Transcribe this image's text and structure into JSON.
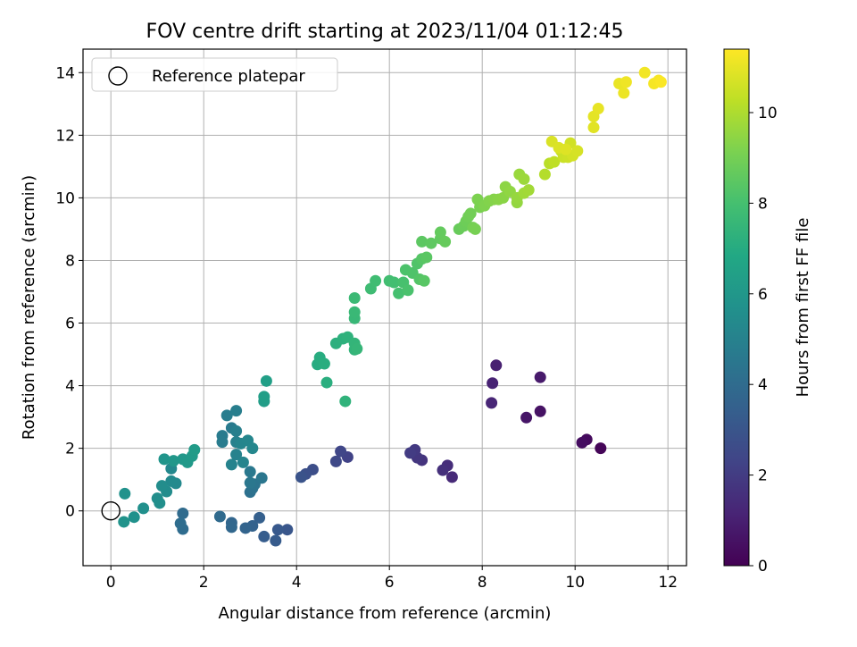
{
  "chart_data": {
    "type": "scatter",
    "title": "FOV centre drift starting at 2023/11/04 01:12:45",
    "xlabel": "Angular distance from reference (arcmin)",
    "ylabel": "Rotation from reference (arcmin)",
    "xlim": [
      -0.6,
      12.4
    ],
    "ylim": [
      -1.75,
      14.75
    ],
    "xticks": [
      0,
      2,
      4,
      6,
      8,
      10,
      12
    ],
    "yticks": [
      0,
      2,
      4,
      6,
      8,
      10,
      12,
      14
    ],
    "grid": true,
    "legend": {
      "placement": "top-left",
      "entries": [
        "Reference platepar"
      ]
    },
    "reference": {
      "x": 0,
      "y": 0
    },
    "colorbar": {
      "label": "Hours from first FF file",
      "colormap": "viridis",
      "min": 0,
      "max": 11.4,
      "ticks": [
        0,
        2,
        4,
        6,
        8,
        10
      ]
    },
    "points": [
      [
        10.55,
        2.0,
        0.15
      ],
      [
        10.25,
        2.28,
        0.3
      ],
      [
        10.15,
        2.18,
        0.4
      ],
      [
        9.25,
        3.18,
        0.55
      ],
      [
        8.95,
        2.98,
        0.65
      ],
      [
        9.25,
        4.27,
        0.8
      ],
      [
        8.3,
        4.65,
        1.0
      ],
      [
        8.22,
        4.08,
        1.1
      ],
      [
        8.2,
        3.45,
        1.2
      ],
      [
        7.35,
        1.08,
        1.35
      ],
      [
        7.25,
        1.45,
        1.45
      ],
      [
        7.15,
        1.3,
        1.55
      ],
      [
        6.7,
        1.62,
        1.7
      ],
      [
        6.6,
        1.7,
        1.8
      ],
      [
        6.55,
        1.95,
        1.9
      ],
      [
        6.45,
        1.85,
        2.0
      ],
      [
        5.1,
        1.72,
        2.25
      ],
      [
        4.95,
        1.9,
        2.4
      ],
      [
        4.85,
        1.58,
        2.5
      ],
      [
        4.35,
        1.32,
        2.7
      ],
      [
        4.2,
        1.18,
        2.8
      ],
      [
        4.1,
        1.08,
        2.9
      ],
      [
        3.8,
        -0.6,
        3.05
      ],
      [
        3.6,
        -0.6,
        3.15
      ],
      [
        3.55,
        -0.95,
        3.25
      ],
      [
        3.3,
        -0.82,
        3.35
      ],
      [
        3.2,
        -0.22,
        3.45
      ],
      [
        3.05,
        -0.48,
        3.55
      ],
      [
        2.9,
        -0.55,
        3.65
      ],
      [
        2.6,
        -0.38,
        3.75
      ],
      [
        2.6,
        -0.52,
        3.8
      ],
      [
        2.35,
        -0.18,
        3.9
      ],
      [
        1.55,
        -0.08,
        3.95
      ],
      [
        1.55,
        -0.58,
        4.0
      ],
      [
        1.5,
        -0.4,
        4.05
      ],
      [
        3.0,
        0.6,
        4.2
      ],
      [
        3.05,
        0.72,
        4.3
      ],
      [
        3.1,
        0.85,
        4.4
      ],
      [
        3.25,
        1.05,
        4.45
      ],
      [
        3.0,
        0.9,
        4.5
      ],
      [
        3.0,
        1.25,
        4.55
      ],
      [
        2.6,
        2.65,
        4.65
      ],
      [
        2.4,
        2.4,
        4.7
      ],
      [
        2.4,
        2.2,
        4.75
      ],
      [
        2.5,
        3.05,
        4.8
      ],
      [
        2.7,
        3.2,
        4.85
      ],
      [
        2.7,
        2.55,
        4.9
      ],
      [
        2.7,
        2.2,
        4.95
      ],
      [
        2.7,
        1.8,
        5.0
      ],
      [
        2.6,
        1.48,
        5.05
      ],
      [
        2.85,
        1.55,
        5.1
      ],
      [
        2.8,
        2.15,
        5.15
      ],
      [
        2.95,
        2.25,
        5.2
      ],
      [
        3.05,
        2.0,
        5.25
      ],
      [
        1.3,
        1.35,
        5.3
      ],
      [
        1.4,
        0.88,
        5.35
      ],
      [
        1.3,
        0.95,
        5.4
      ],
      [
        1.2,
        0.62,
        5.45
      ],
      [
        1.1,
        0.8,
        5.5
      ],
      [
        1.0,
        0.4,
        5.55
      ],
      [
        1.05,
        0.25,
        5.6
      ],
      [
        0.7,
        0.08,
        5.65
      ],
      [
        0.5,
        -0.2,
        5.7
      ],
      [
        0.3,
        0.55,
        5.75
      ],
      [
        0.28,
        -0.35,
        5.8
      ],
      [
        1.15,
        1.65,
        5.9
      ],
      [
        1.35,
        1.6,
        6.0
      ],
      [
        1.55,
        1.65,
        6.05
      ],
      [
        1.65,
        1.55,
        6.1
      ],
      [
        1.75,
        1.75,
        6.15
      ],
      [
        1.8,
        1.95,
        6.2
      ],
      [
        3.3,
        3.5,
        6.3
      ],
      [
        3.3,
        3.65,
        6.35
      ],
      [
        3.35,
        4.15,
        6.4
      ],
      [
        4.45,
        4.68,
        7.0
      ],
      [
        4.5,
        4.9,
        7.05
      ],
      [
        4.6,
        4.7,
        7.1
      ],
      [
        4.65,
        4.1,
        7.15
      ],
      [
        4.85,
        5.35,
        7.2
      ],
      [
        5.0,
        5.5,
        7.25
      ],
      [
        5.1,
        5.55,
        7.3
      ],
      [
        5.05,
        3.5,
        7.35
      ],
      [
        5.25,
        5.15,
        7.4
      ],
      [
        5.25,
        5.35,
        7.45
      ],
      [
        5.3,
        5.18,
        7.5
      ],
      [
        5.25,
        6.15,
        7.6
      ],
      [
        5.25,
        6.35,
        7.65
      ],
      [
        5.25,
        6.8,
        7.7
      ],
      [
        5.6,
        7.1,
        7.8
      ],
      [
        5.7,
        7.35,
        7.85
      ],
      [
        6.0,
        7.35,
        7.9
      ],
      [
        6.1,
        7.3,
        7.95
      ],
      [
        6.2,
        6.95,
        8.0
      ],
      [
        6.3,
        7.3,
        8.05
      ],
      [
        6.4,
        7.05,
        8.1
      ],
      [
        6.35,
        7.7,
        8.15
      ],
      [
        6.5,
        7.6,
        8.2
      ],
      [
        6.6,
        7.9,
        8.25
      ],
      [
        6.65,
        7.4,
        8.3
      ],
      [
        6.7,
        8.05,
        8.35
      ],
      [
        6.75,
        7.35,
        8.4
      ],
      [
        6.8,
        8.1,
        8.45
      ],
      [
        6.7,
        8.6,
        8.5
      ],
      [
        6.9,
        8.55,
        8.55
      ],
      [
        7.1,
        8.7,
        8.6
      ],
      [
        7.1,
        8.9,
        8.65
      ],
      [
        7.2,
        8.6,
        8.7
      ],
      [
        7.5,
        9.0,
        8.75
      ],
      [
        7.6,
        9.1,
        8.8
      ],
      [
        7.65,
        9.25,
        8.85
      ],
      [
        7.7,
        9.4,
        8.9
      ],
      [
        7.75,
        9.5,
        8.95
      ],
      [
        7.8,
        9.05,
        9.0
      ],
      [
        7.85,
        9.0,
        9.05
      ],
      [
        7.95,
        9.7,
        9.1
      ],
      [
        7.9,
        9.95,
        9.15
      ],
      [
        8.05,
        9.75,
        9.2
      ],
      [
        8.15,
        9.9,
        9.25
      ],
      [
        8.25,
        9.95,
        9.3
      ],
      [
        8.35,
        9.95,
        9.35
      ],
      [
        8.45,
        10.0,
        9.4
      ],
      [
        8.5,
        10.35,
        9.45
      ],
      [
        8.6,
        10.2,
        9.5
      ],
      [
        8.75,
        9.85,
        9.55
      ],
      [
        8.75,
        10.0,
        9.6
      ],
      [
        8.8,
        10.75,
        9.65
      ],
      [
        8.9,
        10.6,
        9.7
      ],
      [
        8.9,
        10.15,
        9.75
      ],
      [
        9.0,
        10.25,
        9.8
      ],
      [
        9.35,
        10.75,
        10.1
      ],
      [
        9.45,
        11.1,
        10.2
      ],
      [
        9.55,
        11.15,
        10.3
      ],
      [
        9.7,
        11.5,
        10.4
      ],
      [
        9.75,
        11.3,
        10.5
      ],
      [
        9.85,
        11.3,
        10.55
      ],
      [
        9.9,
        11.75,
        10.6
      ],
      [
        9.95,
        11.35,
        10.65
      ],
      [
        10.05,
        11.5,
        10.7
      ],
      [
        9.5,
        11.8,
        10.75
      ],
      [
        9.65,
        11.6,
        10.8
      ],
      [
        9.8,
        11.55,
        10.85
      ],
      [
        10.4,
        12.25,
        10.9
      ],
      [
        10.4,
        12.6,
        10.95
      ],
      [
        10.5,
        12.85,
        11.0
      ],
      [
        10.95,
        13.65,
        11.05
      ],
      [
        11.05,
        13.35,
        11.1
      ],
      [
        11.1,
        13.7,
        11.15
      ],
      [
        11.5,
        14.0,
        11.2
      ],
      [
        11.7,
        13.65,
        11.25
      ],
      [
        11.8,
        13.75,
        11.3
      ],
      [
        11.85,
        13.7,
        11.35
      ]
    ]
  }
}
